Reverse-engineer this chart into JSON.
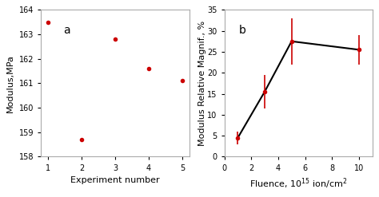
{
  "subplot_a": {
    "x": [
      1,
      2,
      3,
      4,
      5
    ],
    "y": [
      163.5,
      158.7,
      162.8,
      161.6,
      161.1
    ],
    "xlabel": "Experiment number",
    "ylabel": "Modulus,MPa",
    "ylim": [
      158,
      164
    ],
    "yticks": [
      158,
      159,
      160,
      161,
      162,
      163,
      164
    ],
    "xticks": [
      1,
      2,
      3,
      4,
      5
    ],
    "label": "a",
    "marker_color": "#cc0000",
    "markersize": 4
  },
  "subplot_b": {
    "x": [
      1,
      3,
      5,
      10
    ],
    "y": [
      4.5,
      15.5,
      27.5,
      25.5
    ],
    "yerr": [
      1.5,
      4.0,
      5.5,
      3.5
    ],
    "xlabel": "Fluence, 10$^{15}$ ion/cm$^2$",
    "ylabel": "Modulus Relative Magnif., %",
    "ylim": [
      0,
      35
    ],
    "yticks": [
      0,
      5,
      10,
      15,
      20,
      25,
      30,
      35
    ],
    "xlim": [
      0,
      11
    ],
    "xticks": [
      0,
      2,
      4,
      6,
      8,
      10
    ],
    "label": "b",
    "marker_color": "#cc0000",
    "line_color": "#000000",
    "markersize": 4,
    "linewidth": 1.5,
    "capsize": 3
  },
  "background_color": "#ffffff",
  "spine_color": "#aaaaaa",
  "tick_label_size": 7,
  "axis_label_size": 8,
  "panel_label_size": 10
}
